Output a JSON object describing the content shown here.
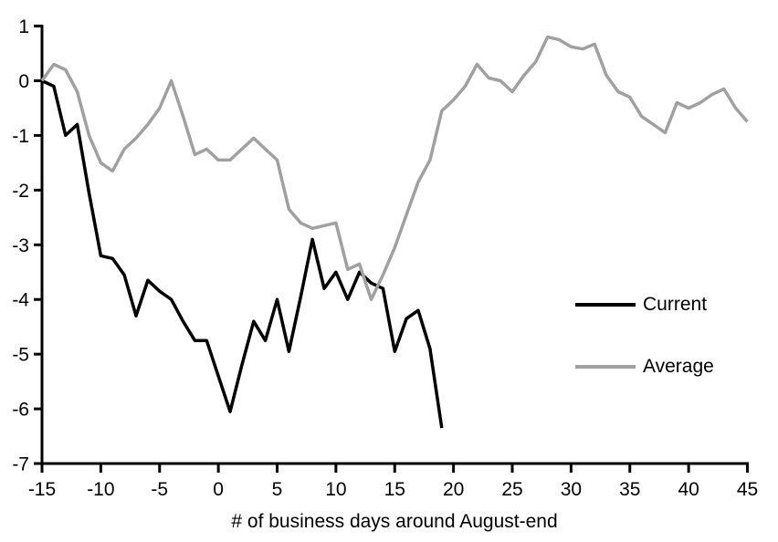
{
  "colors": {
    "background": "#ffffff",
    "axis": "#000000",
    "current_line": "#000000",
    "average_line": "#a0a0a0"
  },
  "chart_data": {
    "type": "line",
    "title": "",
    "xlabel": "# of business days around August-end",
    "ylabel": "",
    "xlim": [
      -15,
      45
    ],
    "ylim": [
      -7,
      1
    ],
    "x_ticks": [
      -15,
      -10,
      -5,
      0,
      5,
      10,
      15,
      20,
      25,
      30,
      35,
      40,
      45
    ],
    "y_ticks": [
      1,
      0,
      -1,
      -2,
      -3,
      -4,
      -5,
      -6,
      -7
    ],
    "grid": false,
    "legend_position": "right-middle",
    "series": [
      {
        "name": "Current",
        "color": "#000000",
        "x": [
          -15,
          -14,
          -13,
          -12,
          -11,
          -10,
          -9,
          -8,
          -7,
          -6,
          -5,
          -4,
          -3,
          -2,
          -1,
          0,
          1,
          2,
          3,
          4,
          5,
          6,
          7,
          8,
          9,
          10,
          11,
          12,
          13,
          14,
          15,
          16,
          17,
          18,
          19
        ],
        "values": [
          0.0,
          -0.1,
          -1.0,
          -0.8,
          -2.05,
          -3.2,
          -3.25,
          -3.55,
          -4.3,
          -3.65,
          -3.85,
          -4.0,
          -4.4,
          -4.75,
          -4.75,
          -5.4,
          -6.05,
          -5.2,
          -4.4,
          -4.75,
          -4.0,
          -4.95,
          -3.95,
          -2.9,
          -3.8,
          -3.5,
          -4.0,
          -3.5,
          -3.7,
          -3.8,
          -4.95,
          -4.35,
          -4.2,
          -4.9,
          -6.35
        ]
      },
      {
        "name": "Average",
        "color": "#a0a0a0",
        "x": [
          -15,
          -14,
          -13,
          -12,
          -11,
          -10,
          -9,
          -8,
          -7,
          -6,
          -5,
          -4,
          -3,
          -2,
          -1,
          0,
          1,
          2,
          3,
          4,
          5,
          6,
          7,
          8,
          9,
          10,
          11,
          12,
          13,
          14,
          15,
          16,
          17,
          18,
          19,
          20,
          21,
          22,
          23,
          24,
          25,
          26,
          27,
          28,
          29,
          30,
          31,
          32,
          33,
          34,
          35,
          36,
          37,
          38,
          39,
          40,
          41,
          42,
          43,
          44,
          45
        ],
        "values": [
          0.0,
          0.3,
          0.2,
          -0.2,
          -1.0,
          -1.5,
          -1.65,
          -1.25,
          -1.05,
          -0.8,
          -0.5,
          0.0,
          -0.65,
          -1.35,
          -1.25,
          -1.45,
          -1.45,
          -1.25,
          -1.05,
          -1.25,
          -1.45,
          -2.35,
          -2.6,
          -2.7,
          -2.65,
          -2.6,
          -3.45,
          -3.35,
          -4.0,
          -3.55,
          -3.05,
          -2.45,
          -1.85,
          -1.45,
          -0.55,
          -0.35,
          -0.1,
          0.3,
          0.05,
          0.0,
          -0.2,
          0.1,
          0.35,
          0.8,
          0.75,
          0.62,
          0.58,
          0.67,
          0.1,
          -0.2,
          -0.3,
          -0.65,
          -0.8,
          -0.95,
          -0.4,
          -0.5,
          -0.4,
          -0.25,
          -0.15,
          -0.5,
          -0.75
        ]
      }
    ]
  }
}
